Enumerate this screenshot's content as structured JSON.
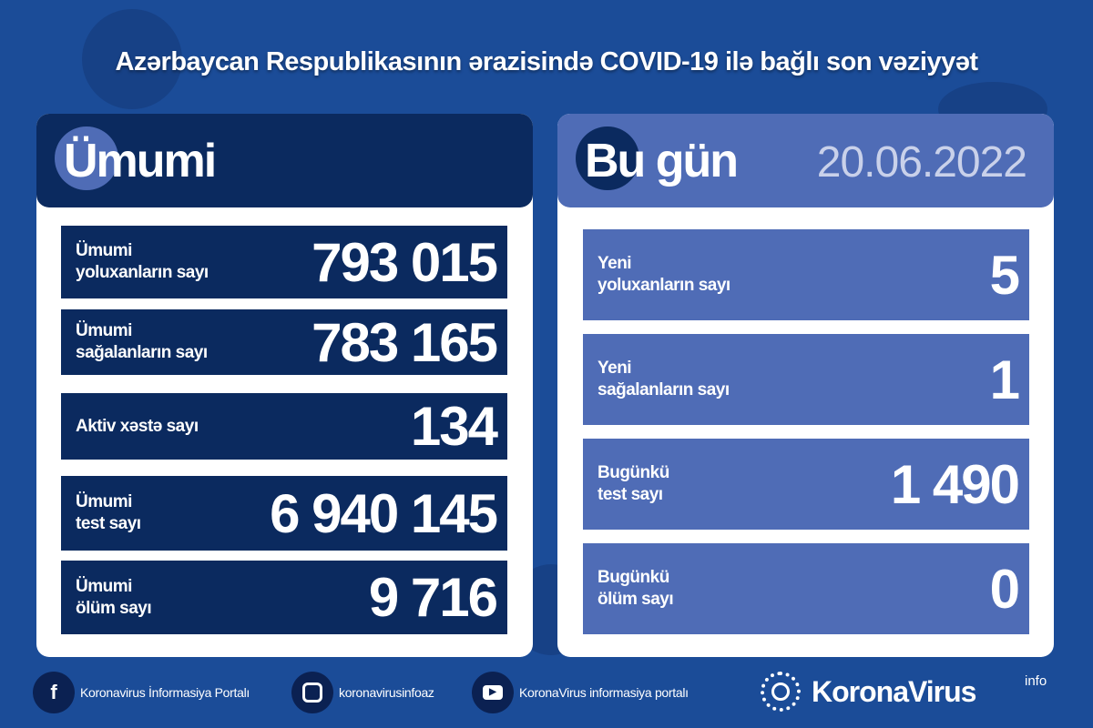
{
  "title": "Azərbaycan Respublikasının ərazisində COVID-19 ilə bağlı son vəziyyət",
  "colors": {
    "background": "#1b4c98",
    "dark_navy": "#0b2a5f",
    "light_blue": "#4f6cb6"
  },
  "total": {
    "heading": "Ümumi",
    "rows": [
      {
        "label": "Ümumi\nyoluxanların sayı",
        "value": "793 015"
      },
      {
        "label": "Ümumi\nsağalanların sayı",
        "value": "783 165"
      },
      {
        "label": "Aktiv xəstə sayı",
        "value": "134"
      },
      {
        "label": "Ümumi\ntest sayı",
        "value": "6 940 145"
      },
      {
        "label": "Ümumi\nölüm sayı",
        "value": "9 716"
      }
    ]
  },
  "today": {
    "heading": "Bu gün",
    "date": "20.06.2022",
    "rows": [
      {
        "label": "Yeni\nyoluxanların sayı",
        "value": "5"
      },
      {
        "label": "Yeni\nsağalanların sayı",
        "value": "1"
      },
      {
        "label": "Bugünkü\ntest sayı",
        "value": "1 490"
      },
      {
        "label": "Bugünkü\nölüm sayı",
        "value": "0"
      }
    ]
  },
  "footer": {
    "links": [
      {
        "icon": "facebook-icon",
        "text": "Koronavirus İnformasiya Portalı"
      },
      {
        "icon": "instagram-icon",
        "text": "koronavirusinfoaz"
      },
      {
        "icon": "youtube-icon",
        "text": "KoronaVirus informasiya portalı"
      }
    ],
    "logo": "KoronaVirus",
    "logo_sup": "info"
  }
}
